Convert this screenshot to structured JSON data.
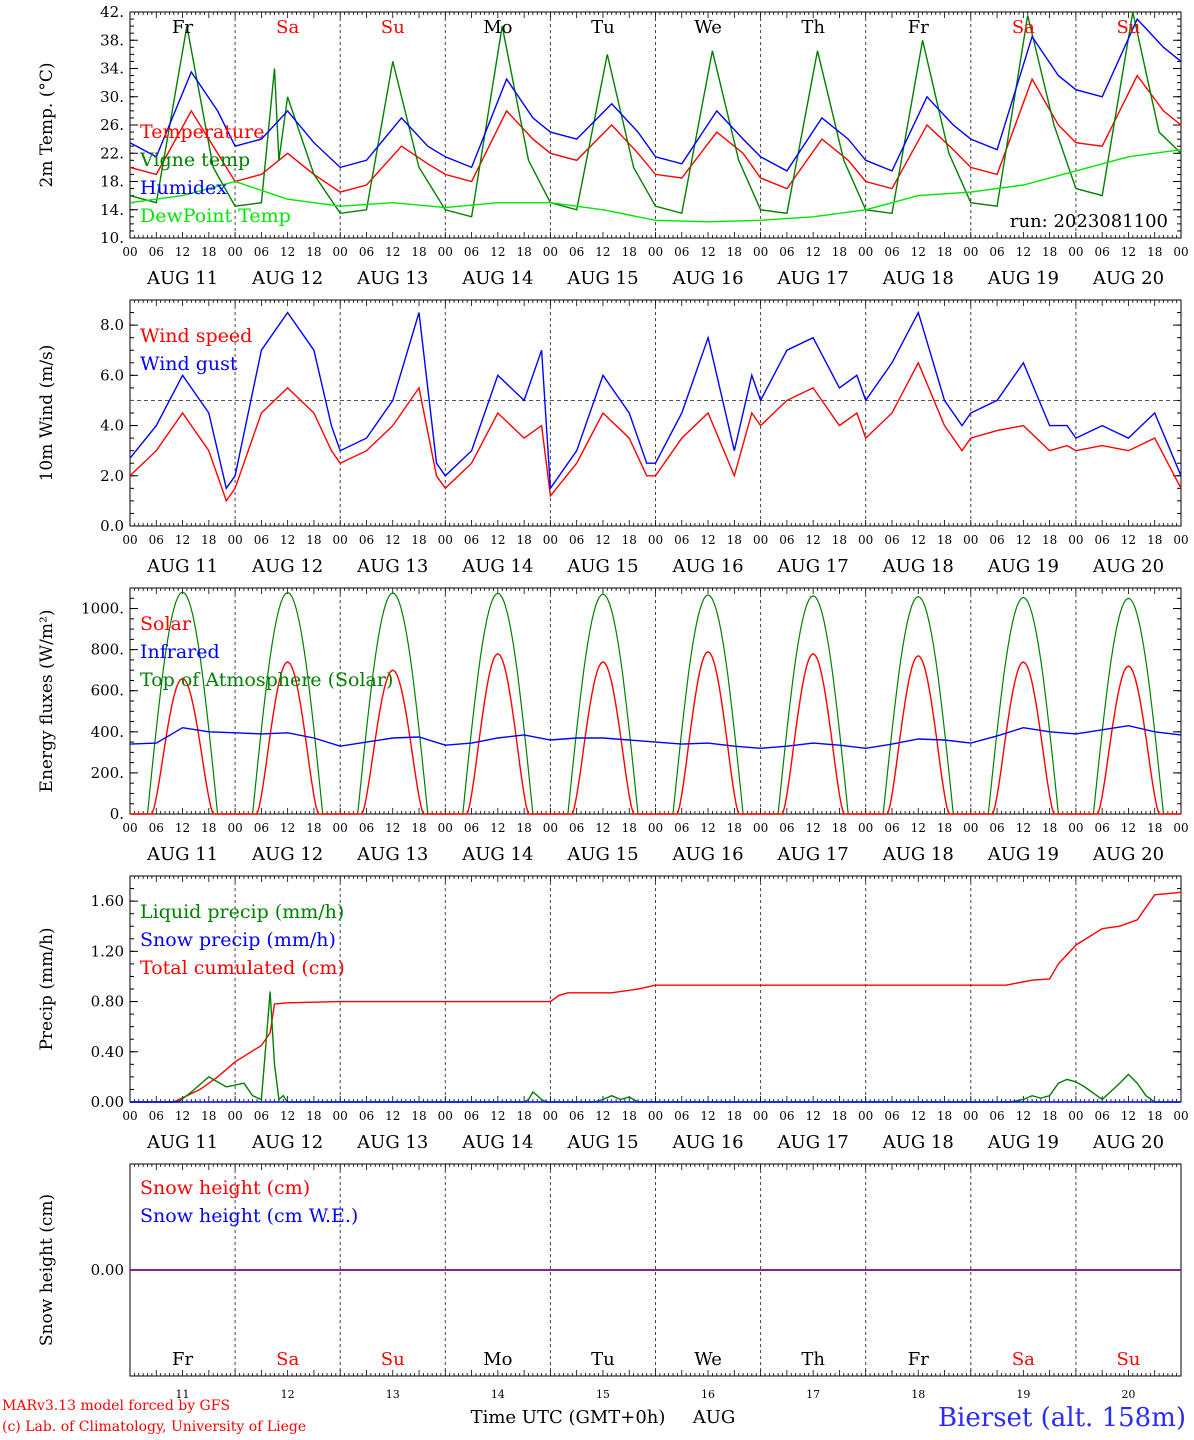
{
  "colors": {
    "red": "#ff0000",
    "blue": "#0000ff",
    "green": "#008000",
    "lime": "#00e600",
    "purple": "#800080",
    "axis": "#000000",
    "weekend": "#ff0000",
    "station": "#2b2bff"
  },
  "days": {
    "dates": [
      "AUG 11",
      "AUG 12",
      "AUG 13",
      "AUG 14",
      "AUG 15",
      "AUG 16",
      "AUG 17",
      "AUG 18",
      "AUG 19",
      "AUG 20"
    ],
    "weekdays": [
      "Fr",
      "Sa",
      "Su",
      "Mo",
      "Tu",
      "We",
      "Th",
      "Fr",
      "Sa",
      "Su"
    ],
    "weekend": [
      false,
      true,
      true,
      false,
      false,
      false,
      false,
      false,
      true,
      true
    ],
    "day_numbers": [
      "11",
      "12",
      "13",
      "14",
      "15",
      "16",
      "17",
      "18",
      "19",
      "20"
    ],
    "hour_ticks": [
      "00",
      "06",
      "12",
      "18"
    ],
    "end_tick": "00"
  },
  "run_label": "run: 2023081100",
  "footer": {
    "credit_line1": "MARv3.13 model forced by GFS",
    "credit_line2": "(c) Lab. of Climatology, University of Liege",
    "xlabel": "Time UTC (GMT+0h)",
    "month": "AUG",
    "station": "Bierset (alt. 158m)"
  },
  "chart_data": [
    {
      "id": "temperature",
      "type": "line",
      "ylabel": "2m Temp. (°C)",
      "ylim": [
        10,
        42
      ],
      "yticks": [
        "10.",
        "14.",
        "18.",
        "22.",
        "26.",
        "30.",
        "34.",
        "38.",
        "42."
      ],
      "xunit": "hours since AUG 11 00 UTC",
      "xlim": [
        0,
        240
      ],
      "legend": [
        "Temperature",
        "Vigne temp",
        "Humidex",
        "DewPoint Temp"
      ],
      "series": [
        {
          "name": "Temperature",
          "color": "red",
          "x": [
            0,
            6,
            14,
            20,
            24,
            30,
            36,
            42,
            48,
            54,
            62,
            68,
            72,
            78,
            86,
            92,
            96,
            102,
            110,
            116,
            120,
            126,
            134,
            140,
            144,
            150,
            158,
            164,
            168,
            174,
            182,
            188,
            192,
            198,
            206,
            212,
            216,
            222,
            230,
            236,
            240
          ],
          "y": [
            20,
            19,
            28,
            22,
            18,
            19,
            22,
            19,
            16.5,
            17.5,
            23,
            20.5,
            19,
            18,
            28,
            24,
            22,
            21,
            26,
            22,
            19,
            18.5,
            25,
            22,
            18.5,
            17,
            24,
            21,
            18,
            17,
            26,
            22.5,
            20,
            19,
            32.5,
            26,
            23.5,
            23,
            33,
            28,
            26
          ]
        },
        {
          "name": "Vigne temp",
          "color": "green",
          "x": [
            0,
            6,
            13,
            19,
            24,
            30,
            33,
            34,
            36,
            42,
            48,
            54,
            60,
            66,
            72,
            78,
            85,
            91,
            96,
            102,
            109,
            115,
            120,
            126,
            133,
            139,
            144,
            150,
            157,
            163,
            168,
            174,
            181,
            187,
            192,
            198,
            205,
            211,
            216,
            222,
            229,
            235,
            240
          ],
          "y": [
            16,
            15,
            40,
            20,
            14.5,
            15,
            34,
            21,
            30,
            19,
            13.5,
            14,
            35,
            20,
            14,
            13,
            40,
            21,
            15,
            14,
            36,
            20,
            14.5,
            13.5,
            36.5,
            21,
            14,
            13.5,
            36.5,
            21,
            14,
            13.5,
            38,
            22,
            15,
            14.5,
            41.5,
            26,
            17,
            16,
            42,
            25,
            22
          ]
        },
        {
          "name": "Humidex",
          "color": "blue",
          "x": [
            0,
            6,
            14,
            20,
            24,
            30,
            36,
            42,
            48,
            54,
            62,
            68,
            72,
            78,
            86,
            92,
            96,
            102,
            110,
            116,
            120,
            126,
            134,
            140,
            144,
            150,
            158,
            164,
            168,
            174,
            182,
            188,
            192,
            198,
            206,
            212,
            216,
            222,
            230,
            236,
            240
          ],
          "y": [
            23.5,
            21.5,
            33.5,
            28,
            23,
            24,
            28,
            23.5,
            20,
            21,
            27,
            23,
            21.5,
            20,
            32.5,
            27,
            25,
            24,
            29,
            25,
            21.5,
            20.5,
            28,
            24,
            21.5,
            19.5,
            27,
            24,
            21,
            19.5,
            30,
            26,
            24,
            22.5,
            38.5,
            33,
            31,
            30,
            41,
            37,
            35
          ]
        },
        {
          "name": "DewPoint Temp",
          "color": "lime",
          "x": [
            0,
            12,
            24,
            36,
            48,
            60,
            72,
            84,
            96,
            108,
            120,
            132,
            144,
            156,
            168,
            180,
            192,
            204,
            216,
            228,
            240
          ],
          "y": [
            15,
            16,
            18,
            15.5,
            14.5,
            15,
            14.3,
            15,
            15,
            14,
            12.5,
            12.3,
            12.5,
            13,
            14,
            16,
            16.5,
            17.5,
            19.5,
            21.5,
            22.5
          ]
        }
      ]
    },
    {
      "id": "wind",
      "type": "line",
      "ylabel": "10m Wind (m/s)",
      "ylim": [
        0,
        9
      ],
      "yticks": [
        "0.0",
        "2.0",
        "4.0",
        "6.0",
        "8.0"
      ],
      "reference_line": 5,
      "xunit": "hours since AUG 11 00 UTC",
      "xlim": [
        0,
        240
      ],
      "legend": [
        "Wind speed",
        "Wind gust"
      ],
      "series": [
        {
          "name": "Wind speed",
          "color": "red",
          "x": [
            0,
            6,
            12,
            18,
            22,
            24,
            30,
            36,
            42,
            46,
            48,
            54,
            60,
            66,
            70,
            72,
            78,
            84,
            90,
            94,
            96,
            102,
            108,
            114,
            118,
            120,
            126,
            132,
            138,
            142,
            144,
            150,
            156,
            162,
            166,
            168,
            174,
            180,
            186,
            190,
            192,
            198,
            204,
            210,
            214,
            216,
            222,
            228,
            234,
            240
          ],
          "y": [
            2,
            3,
            4.5,
            3,
            1,
            1.5,
            4.5,
            5.5,
            4.5,
            3,
            2.5,
            3,
            4,
            5.5,
            2,
            1.5,
            2.5,
            4.5,
            3.5,
            4,
            1.2,
            2.5,
            4.5,
            3.5,
            2,
            2,
            3.5,
            4.5,
            2,
            4.5,
            4,
            5,
            5.5,
            4,
            4.5,
            3.5,
            4.5,
            6.5,
            4,
            3,
            3.5,
            3.8,
            4,
            3,
            3.2,
            3,
            3.2,
            3,
            3.5,
            1.5
          ]
        },
        {
          "name": "Wind gust",
          "color": "blue",
          "x": [
            0,
            6,
            12,
            18,
            22,
            24,
            30,
            36,
            42,
            46,
            48,
            54,
            60,
            66,
            70,
            72,
            78,
            84,
            90,
            94,
            96,
            102,
            108,
            114,
            118,
            120,
            126,
            132,
            138,
            142,
            144,
            150,
            156,
            162,
            166,
            168,
            174,
            180,
            186,
            190,
            192,
            198,
            204,
            210,
            214,
            216,
            222,
            228,
            234,
            240
          ],
          "y": [
            2.7,
            4,
            6,
            4.5,
            1.5,
            2,
            7,
            8.5,
            7,
            4,
            3,
            3.5,
            5,
            8.5,
            2.5,
            2,
            3,
            6,
            5,
            7,
            1.5,
            3,
            6,
            4.5,
            2.5,
            2.5,
            4.5,
            7.5,
            3,
            6,
            5,
            7,
            7.5,
            5.5,
            6,
            5,
            6.5,
            8.5,
            5,
            4,
            4.5,
            5,
            6.5,
            4,
            4,
            3.5,
            4,
            3.5,
            4.5,
            2
          ]
        }
      ]
    },
    {
      "id": "energy",
      "type": "line",
      "ylabel": "Energy fluxes (W/m²)",
      "ylim": [
        0,
        1100
      ],
      "yticks": [
        "0.",
        "200.",
        "400.",
        "600.",
        "800.",
        "1000."
      ],
      "xunit": "hours since AUG 11 00 UTC",
      "xlim": [
        0,
        240
      ],
      "legend": [
        "Solar",
        "Infrared",
        "Top of Atmosphere (Solar)"
      ],
      "toa_peaks": [
        1080,
        1078,
        1076,
        1074,
        1070,
        1066,
        1062,
        1058,
        1054,
        1050
      ],
      "solar_peaks": [
        660,
        740,
        700,
        780,
        740,
        790,
        780,
        770,
        740,
        720
      ],
      "series": [
        {
          "name": "Infrared",
          "color": "blue",
          "x": [
            0,
            6,
            12,
            18,
            24,
            30,
            36,
            42,
            48,
            54,
            60,
            66,
            72,
            78,
            84,
            90,
            96,
            102,
            108,
            114,
            120,
            126,
            132,
            138,
            144,
            150,
            156,
            162,
            168,
            174,
            180,
            186,
            192,
            198,
            204,
            210,
            216,
            222,
            228,
            234,
            240
          ],
          "y": [
            340,
            345,
            420,
            400,
            395,
            390,
            395,
            370,
            330,
            350,
            370,
            375,
            335,
            345,
            370,
            385,
            360,
            370,
            370,
            360,
            350,
            340,
            345,
            330,
            320,
            330,
            345,
            335,
            320,
            340,
            365,
            360,
            345,
            380,
            420,
            400,
            390,
            410,
            430,
            400,
            385
          ]
        }
      ]
    },
    {
      "id": "precip",
      "type": "line",
      "ylabel": "Precip (mm/h)",
      "ylim": [
        0,
        1.8
      ],
      "yticks": [
        "0.00",
        "0.40",
        "0.80",
        "1.20",
        "1.60"
      ],
      "xunit": "hours since AUG 11 00 UTC",
      "xlim": [
        0,
        240
      ],
      "legend": [
        "Liquid precip (mm/h)",
        "Snow precip (mm/h)",
        "Total cumulated (cm)"
      ],
      "series": [
        {
          "name": "Total cumulated (cm)",
          "color": "red",
          "x": [
            0,
            10,
            16,
            20,
            24,
            30,
            32,
            33,
            36,
            48,
            72,
            90,
            96,
            98,
            100,
            110,
            116,
            120,
            130,
            140,
            156,
            170,
            180,
            190,
            200,
            206,
            210,
            212,
            216,
            222,
            226,
            230,
            234,
            240
          ],
          "y": [
            0,
            0,
            0.1,
            0.2,
            0.32,
            0.45,
            0.55,
            0.78,
            0.79,
            0.8,
            0.8,
            0.8,
            0.8,
            0.85,
            0.87,
            0.87,
            0.9,
            0.93,
            0.93,
            0.93,
            0.93,
            0.93,
            0.93,
            0.93,
            0.93,
            0.97,
            0.98,
            1.1,
            1.25,
            1.38,
            1.4,
            1.45,
            1.65,
            1.67
          ]
        },
        {
          "name": "Liquid precip (mm/h)",
          "color": "green",
          "x": [
            0,
            11,
            14,
            18,
            22,
            26,
            28,
            30,
            31,
            32,
            33,
            34,
            35,
            36,
            90,
            91,
            92,
            93,
            94,
            95,
            96,
            106,
            108,
            110,
            112,
            114,
            116,
            201,
            204,
            206,
            208,
            210,
            212,
            214,
            216,
            218,
            222,
            226,
            228,
            230,
            232,
            234,
            240
          ],
          "y": [
            0,
            0,
            0.08,
            0.2,
            0.12,
            0.15,
            0.05,
            0.02,
            0.45,
            0.88,
            0.3,
            0.02,
            0.05,
            0,
            0,
            0.02,
            0.08,
            0.05,
            0.02,
            0,
            0,
            0,
            0.02,
            0.05,
            0.02,
            0.04,
            0,
            0,
            0.02,
            0.05,
            0.03,
            0.05,
            0.15,
            0.18,
            0.16,
            0.12,
            0.02,
            0.15,
            0.22,
            0.15,
            0.05,
            0,
            0
          ]
        },
        {
          "name": "Snow precip (mm/h)",
          "color": "blue",
          "x": [
            0,
            240
          ],
          "y": [
            0,
            0
          ]
        }
      ]
    },
    {
      "id": "snow",
      "type": "line",
      "ylabel": "Snow height (cm)",
      "ylim": [
        -1,
        1
      ],
      "yticks": [
        "0.00"
      ],
      "xunit": "hours since AUG 11 00 UTC",
      "xlim": [
        0,
        240
      ],
      "legend": [
        "Snow height (cm)",
        "Snow height (cm W.E.)"
      ],
      "series": [
        {
          "name": "Snow height (cm)",
          "color": "purple",
          "x": [
            0,
            240
          ],
          "y": [
            0,
            0
          ]
        },
        {
          "name": "Snow height (cm W.E.)",
          "color": "purple",
          "x": [
            0,
            240
          ],
          "y": [
            0,
            0
          ]
        }
      ]
    }
  ]
}
